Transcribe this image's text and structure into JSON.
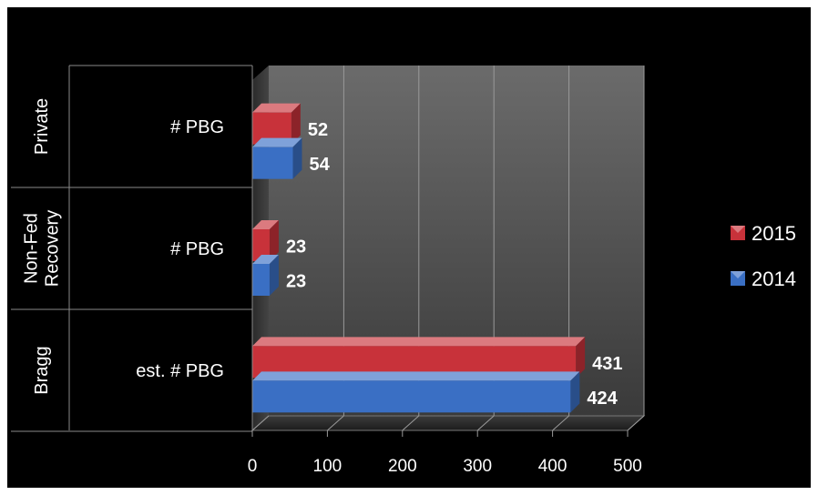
{
  "chart_data": {
    "type": "bar",
    "orientation": "horizontal",
    "style": "3d-clustered",
    "background": "#000000",
    "axis_text_color": "#ffffff",
    "groups": [
      {
        "name": "Bragg",
        "categories": [
          "est. # PBG"
        ]
      },
      {
        "name": "Non-Fed Recovery",
        "categories": [
          "# PBG"
        ]
      },
      {
        "name": "Private",
        "categories": [
          "# PBG"
        ]
      }
    ],
    "categories": [
      "Bragg est. # PBG",
      "Non-Fed Recovery # PBG",
      "Private # PBG"
    ],
    "series": [
      {
        "name": "2015",
        "values": [
          431,
          23,
          52
        ],
        "color": "#c8323a"
      },
      {
        "name": "2014",
        "values": [
          424,
          23,
          54
        ],
        "color": "#3a6fc4"
      }
    ],
    "xlim": [
      0,
      500
    ],
    "xticks": [
      "0",
      "100",
      "200",
      "300",
      "400",
      "500"
    ],
    "gridlines": true,
    "legend_position": "right",
    "data_labels": true
  }
}
